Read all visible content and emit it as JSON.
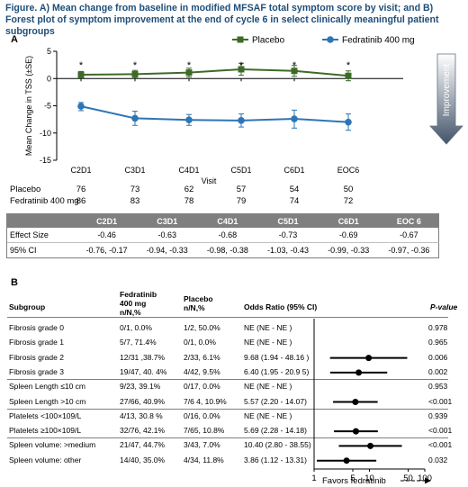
{
  "figure_title": "Figure. A) Mean change from baseline in modified MFSAF total symptom score by visit; and B) Forest plot of symptom improvement at the end of cycle 6 in select clinically meaningful patient subgroups",
  "panel_a": {
    "label": "A",
    "counts_header_x": "Visit",
    "count_rows": [
      {
        "label": "Placebo",
        "values": [
          "76",
          "73",
          "62",
          "57",
          "54",
          "50"
        ]
      },
      {
        "label": "Fedratinib 400 mg",
        "values": [
          "86",
          "83",
          "78",
          "79",
          "74",
          "72"
        ]
      }
    ],
    "effect_table": {
      "headers": [
        "C2D1",
        "C3D1",
        "C4D1",
        "C5D1",
        "C6D1",
        "EOC 6"
      ],
      "rows": [
        {
          "label": "Effect Size",
          "values": [
            "-0.46",
            "-0.63",
            "-0.68",
            "-0.73",
            "-0.69",
            "-0.67"
          ]
        },
        {
          "label": "95% CI",
          "values": [
            "-0.76, -0.17",
            "-0.94, -0.33",
            "-0.98, -0.38",
            "-1.03, -0.43",
            "-0.99, -0.33",
            "-0.97, -0.36"
          ]
        }
      ]
    }
  },
  "panel_b": {
    "label": "B",
    "headers": {
      "subgroup": "Subgroup",
      "fedratinib": [
        "Fedratinib",
        "400 mg",
        "n/N,%"
      ],
      "placebo": [
        "Placebo",
        "n/N,%"
      ],
      "odds": "Odds Ratio (95% CI)",
      "pvalue": "P-value"
    },
    "rows": [
      {
        "subgroup": "Fibrosis grade 0",
        "fed": "0/1, 0.0%",
        "pbo": "1/2, 50.0%",
        "or_text": "NE (NE - NE )",
        "p": "0.978",
        "group": "fibrosis"
      },
      {
        "subgroup": "Fibrosis grade 1",
        "fed": "5/7, 71.4%",
        "pbo": "0/1, 0.0%",
        "or_text": "NE (NE - NE )",
        "p": "0.965",
        "group": "fibrosis"
      },
      {
        "subgroup": "Fibrosis grade 2",
        "fed": "12/31 ,38.7%",
        "pbo": "2/33, 6.1%",
        "or_text": "9.68 (1.94 - 48.16 )",
        "p": "0.006",
        "group": "fibrosis"
      },
      {
        "subgroup": "Fibrosis grade 3",
        "fed": "19/47, 40. 4%",
        "pbo": "4/42, 9.5%",
        "or_text": "6.40 (1.95 - 20.9 5)",
        "p": "0.002",
        "group": "fibrosis"
      },
      {
        "subgroup": "Spleen Length ≤10 cm",
        "fed": "9/23, 39.1%",
        "pbo": "0/17, 0.0%",
        "or_text": "NE (NE - NE )",
        "p": "0.953",
        "group": "spleen"
      },
      {
        "subgroup": "Spleen Length >10 cm",
        "fed": "27/66, 40.9%",
        "pbo": "7/6 4, 10.9%",
        "or_text": "5.57 (2.20 - 14.07)",
        "p": "<0.001",
        "group": "spleen"
      },
      {
        "subgroup": "Platelets <100×109/L",
        "fed": "4/13, 30.8 %",
        "pbo": "0/16, 0.0%",
        "or_text": "NE (NE - NE )",
        "p": "0.939",
        "group": "platelets"
      },
      {
        "subgroup": "Platelets ≥100×109/L",
        "fed": "32/76, 42.1%",
        "pbo": "7/65, 10.8%",
        "or_text": "5.69 (2.28 - 14.18)",
        "p": "<0.001",
        "group": "platelets"
      },
      {
        "subgroup": "Spleen volume: >medium",
        "fed": "21/47, 44.7%",
        "pbo": "3/43, 7.0%",
        "or_text": "10.40 (2.80 - 38.55)",
        "p": "<0.001",
        "group": "volume"
      },
      {
        "subgroup": "Spleen volume: other",
        "fed": "14/40, 35.0%",
        "pbo": "4/34, 11.8%",
        "or_text": "3.86 (1.12 - 13.31)",
        "p": "0.032",
        "group": "volume"
      }
    ],
    "favors_label": "Favors fedratinib"
  },
  "chart_data": [
    {
      "type": "line",
      "title": "",
      "xlabel": "Visit",
      "ylabel": "Mean Change in TSS (±SE)",
      "categories": [
        "C2D1",
        "C3D1",
        "C4D1",
        "C5D1",
        "C6D1",
        "EOC6"
      ],
      "ylim": [
        -15,
        5
      ],
      "yticks": [
        -15,
        -10,
        -5,
        0,
        5
      ],
      "legend_placement": "top",
      "series": [
        {
          "name": "Placebo",
          "marker": "square",
          "color": "#3d6b27",
          "values": [
            0.7,
            0.8,
            1.1,
            1.7,
            1.4,
            0.5
          ],
          "se_low": [
            0.1,
            0.1,
            0.3,
            0.6,
            0.4,
            -0.4
          ],
          "se_high": [
            1.3,
            1.5,
            1.9,
            2.8,
            2.4,
            1.4
          ]
        },
        {
          "name": "Fedratinib 400 mg",
          "marker": "circle",
          "color": "#2e75b6",
          "values": [
            -5.1,
            -7.3,
            -7.6,
            -7.7,
            -7.4,
            -8.0
          ],
          "se_low": [
            -5.9,
            -8.6,
            -8.6,
            -8.9,
            -9.1,
            -9.5
          ],
          "se_high": [
            -4.4,
            -6.0,
            -6.6,
            -6.5,
            -5.8,
            -6.5
          ]
        }
      ],
      "annotations": [
        "*",
        "*",
        "*",
        "*",
        "*",
        "*"
      ],
      "improvement_label": "Improvement"
    },
    {
      "type": "scatter",
      "title": "",
      "xlabel": "",
      "x_scale": "log",
      "xlim": [
        1,
        100
      ],
      "xticks": [
        1,
        5,
        10,
        50,
        100
      ],
      "categories": [
        "Fibrosis grade 0",
        "Fibrosis grade 1",
        "Fibrosis grade 2",
        "Fibrosis grade 3",
        "Spleen Length ≤10 cm",
        "Spleen Length >10 cm",
        "Platelets <100×109/L",
        "Platelets ≥100×109/L",
        "Spleen volume: >medium",
        "Spleen volume: other"
      ],
      "series": [
        {
          "name": "",
          "estimate": [
            null,
            null,
            9.68,
            6.4,
            null,
            5.57,
            null,
            5.69,
            10.4,
            3.86
          ],
          "ci_low": [
            null,
            null,
            1.94,
            1.95,
            null,
            2.2,
            null,
            2.28,
            2.8,
            1.12
          ],
          "ci_high": [
            null,
            null,
            48.16,
            20.95,
            null,
            14.07,
            null,
            14.18,
            38.55,
            13.31
          ]
        }
      ]
    }
  ]
}
